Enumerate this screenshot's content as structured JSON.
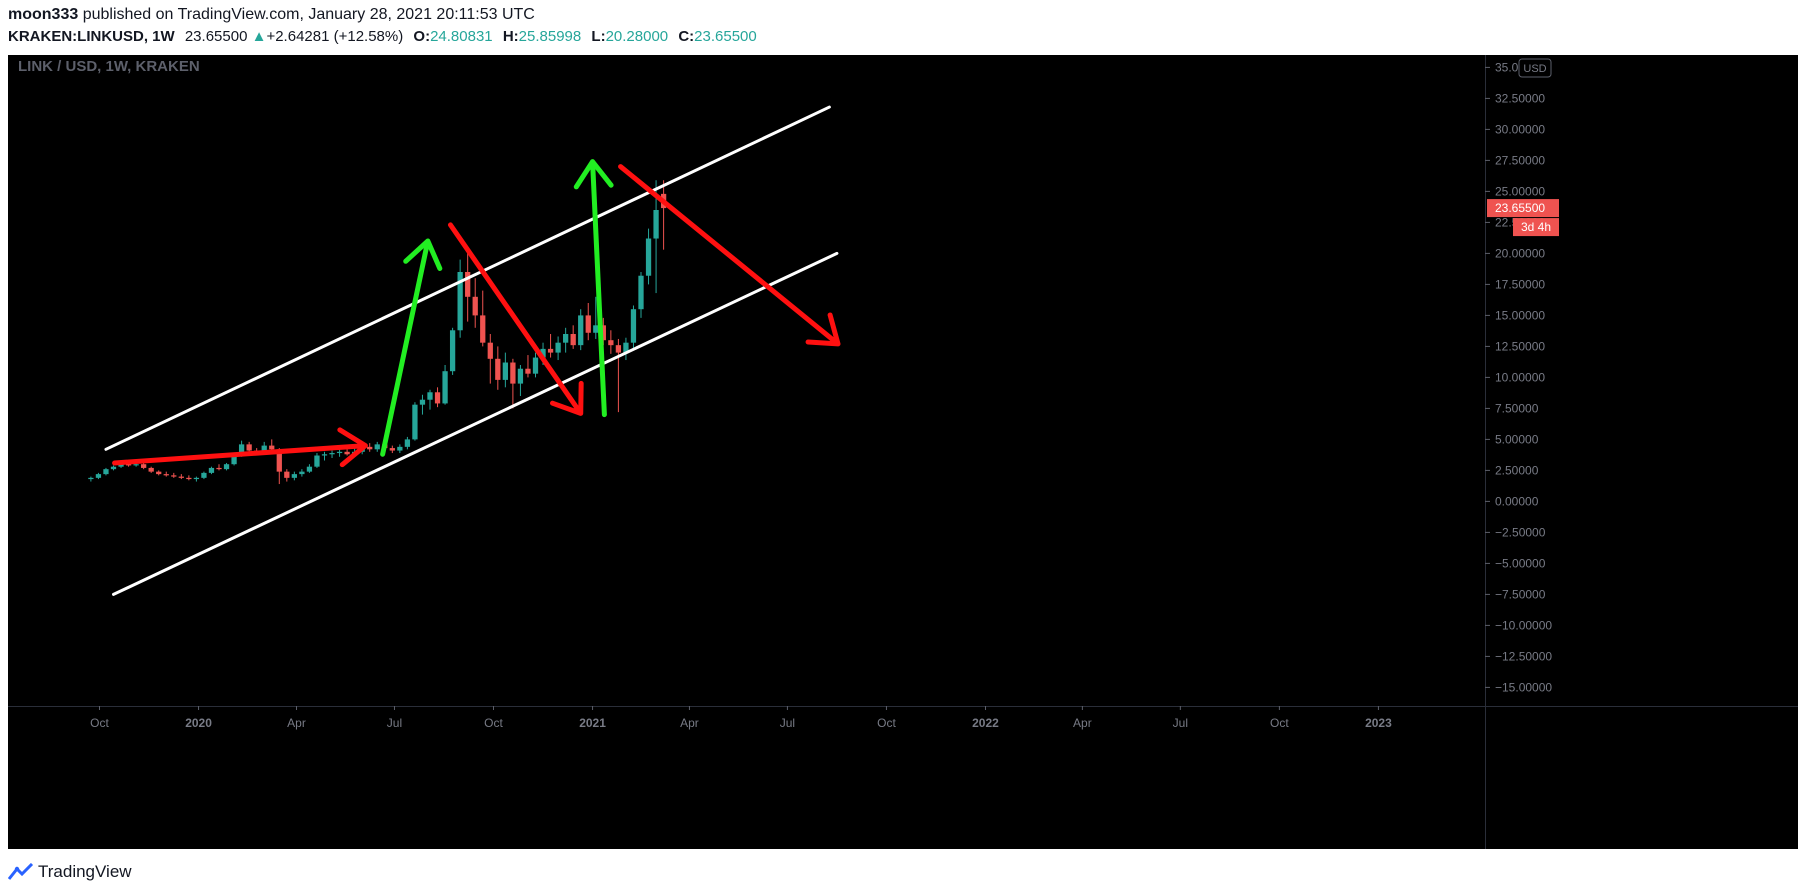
{
  "header": {
    "author": "moon333",
    "published_text": "published on TradingView.com, January 28, 2021 20:11:53 UTC",
    "symbol": "KRAKEN:LINKUSD, 1W",
    "last": "23.65500",
    "change": "+2.64281 (+12.58%)",
    "o_label": "O:",
    "o_value": "24.80831",
    "h_label": "H:",
    "h_value": "25.85998",
    "l_label": "L:",
    "l_value": "20.28000",
    "c_label": "C:",
    "c_value": "23.65500"
  },
  "footer": {
    "brand": "TradingView"
  },
  "colors": {
    "background": "#000000",
    "up_candle": "#26a69a",
    "down_candle": "#ef5350",
    "channel_line": "#ffffff",
    "arrow_red": "#ff1010",
    "arrow_green": "#22ee22",
    "price_tag": "#ef5350"
  },
  "chart_data": {
    "type": "candlestick",
    "title": "LINK / USD, 1W, KRAKEN",
    "currency_label": "USD",
    "last_price_label": "23.65500",
    "countdown_label": "3d 4h",
    "ylim": [
      -16.5,
      36
    ],
    "y_ticks": [
      {
        "v": 35,
        "label": "35.00000"
      },
      {
        "v": 32.5,
        "label": "32.50000"
      },
      {
        "v": 30,
        "label": "30.00000"
      },
      {
        "v": 27.5,
        "label": "27.50000"
      },
      {
        "v": 25,
        "label": "25.00000"
      },
      {
        "v": 22.5,
        "label": "22.50000"
      },
      {
        "v": 20,
        "label": "20.00000"
      },
      {
        "v": 17.5,
        "label": "17.50000"
      },
      {
        "v": 15,
        "label": "15.00000"
      },
      {
        "v": 12.5,
        "label": "12.50000"
      },
      {
        "v": 10,
        "label": "10.00000"
      },
      {
        "v": 7.5,
        "label": "7.50000"
      },
      {
        "v": 5,
        "label": "5.00000"
      },
      {
        "v": 2.5,
        "label": "2.50000"
      },
      {
        "v": 0,
        "label": "0.00000"
      },
      {
        "v": -2.5,
        "label": "−2.50000"
      },
      {
        "v": -5,
        "label": "−5.00000"
      },
      {
        "v": -7.5,
        "label": "−7.50000"
      },
      {
        "v": -10,
        "label": "−10.00000"
      },
      {
        "v": -12.5,
        "label": "−12.50000"
      },
      {
        "v": -15,
        "label": "−15.00000"
      }
    ],
    "x_range": [
      "2019-07-08",
      "2023-04-10"
    ],
    "x_ticks": [
      {
        "date": "2019-10-01",
        "label": "Oct",
        "bold": false
      },
      {
        "date": "2020-01-01",
        "label": "2020",
        "bold": true
      },
      {
        "date": "2020-04-01",
        "label": "Apr",
        "bold": false
      },
      {
        "date": "2020-07-01",
        "label": "Jul",
        "bold": false
      },
      {
        "date": "2020-10-01",
        "label": "Oct",
        "bold": false
      },
      {
        "date": "2021-01-01",
        "label": "2021",
        "bold": true
      },
      {
        "date": "2021-04-01",
        "label": "Apr",
        "bold": false
      },
      {
        "date": "2021-07-01",
        "label": "Jul",
        "bold": false
      },
      {
        "date": "2021-10-01",
        "label": "Oct",
        "bold": false
      },
      {
        "date": "2022-01-01",
        "label": "2022",
        "bold": true
      },
      {
        "date": "2022-04-01",
        "label": "Apr",
        "bold": false
      },
      {
        "date": "2022-07-01",
        "label": "Jul",
        "bold": false
      },
      {
        "date": "2022-10-01",
        "label": "Oct",
        "bold": false
      },
      {
        "date": "2023-01-01",
        "label": "2023",
        "bold": true
      }
    ],
    "first_candle_date": "2019-09-23",
    "candles": [
      [
        1.8,
        2.0,
        1.6,
        1.9
      ],
      [
        1.9,
        2.3,
        1.8,
        2.2
      ],
      [
        2.2,
        2.7,
        2.1,
        2.6
      ],
      [
        2.6,
        2.9,
        2.5,
        2.8
      ],
      [
        2.8,
        3.2,
        2.7,
        3.0
      ],
      [
        3.0,
        3.3,
        2.8,
        2.9
      ],
      [
        2.9,
        3.2,
        2.8,
        3.0
      ],
      [
        3.0,
        3.1,
        2.6,
        2.7
      ],
      [
        2.7,
        2.8,
        2.3,
        2.4
      ],
      [
        2.4,
        2.5,
        2.1,
        2.2
      ],
      [
        2.2,
        2.4,
        2.0,
        2.1
      ],
      [
        2.1,
        2.3,
        1.9,
        2.0
      ],
      [
        2.0,
        2.2,
        1.8,
        1.9
      ],
      [
        1.9,
        2.1,
        1.7,
        1.8
      ],
      [
        1.8,
        2.0,
        1.6,
        1.9
      ],
      [
        1.9,
        2.4,
        1.8,
        2.3
      ],
      [
        2.3,
        2.8,
        2.2,
        2.7
      ],
      [
        2.7,
        3.0,
        2.5,
        2.6
      ],
      [
        2.6,
        3.1,
        2.5,
        3.0
      ],
      [
        3.0,
        3.8,
        2.9,
        3.7
      ],
      [
        3.7,
        4.9,
        3.6,
        4.6
      ],
      [
        4.6,
        4.8,
        3.9,
        4.1
      ],
      [
        4.1,
        4.3,
        3.8,
        4.0
      ],
      [
        4.0,
        4.8,
        3.9,
        4.5
      ],
      [
        4.5,
        5.0,
        4.1,
        4.2
      ],
      [
        4.2,
        4.3,
        1.4,
        2.4
      ],
      [
        2.4,
        2.6,
        1.6,
        1.9
      ],
      [
        1.9,
        2.4,
        1.7,
        2.2
      ],
      [
        2.2,
        2.6,
        2.0,
        2.4
      ],
      [
        2.4,
        3.0,
        2.3,
        2.8
      ],
      [
        2.8,
        3.9,
        2.7,
        3.7
      ],
      [
        3.7,
        4.0,
        3.3,
        3.8
      ],
      [
        3.8,
        4.1,
        3.5,
        3.9
      ],
      [
        3.9,
        4.2,
        3.6,
        4.0
      ],
      [
        4.0,
        4.2,
        3.7,
        3.8
      ],
      [
        3.8,
        4.3,
        3.6,
        4.0
      ],
      [
        4.0,
        4.6,
        3.8,
        4.4
      ],
      [
        4.4,
        4.7,
        4.0,
        4.2
      ],
      [
        4.2,
        4.8,
        4.0,
        4.6
      ],
      [
        4.6,
        4.9,
        4.1,
        4.3
      ],
      [
        4.3,
        4.5,
        3.9,
        4.1
      ],
      [
        4.1,
        4.6,
        3.9,
        4.4
      ],
      [
        4.4,
        5.2,
        4.2,
        5.0
      ],
      [
        5.0,
        8.0,
        4.9,
        7.8
      ],
      [
        7.8,
        8.6,
        7.0,
        8.2
      ],
      [
        8.2,
        9.0,
        7.4,
        8.8
      ],
      [
        8.8,
        9.2,
        7.6,
        7.9
      ],
      [
        7.9,
        11.0,
        7.8,
        10.5
      ],
      [
        10.5,
        14.0,
        10.2,
        13.8
      ],
      [
        13.8,
        19.5,
        13.2,
        18.5
      ],
      [
        18.5,
        20.1,
        14.5,
        16.5
      ],
      [
        16.5,
        18.0,
        14.0,
        15.0
      ],
      [
        15.0,
        17.0,
        12.5,
        12.8
      ],
      [
        12.8,
        13.5,
        9.5,
        11.5
      ],
      [
        11.5,
        12.5,
        9.0,
        9.8
      ],
      [
        9.8,
        12.0,
        9.2,
        11.2
      ],
      [
        11.2,
        11.5,
        7.5,
        9.5
      ],
      [
        9.5,
        11.0,
        8.5,
        10.7
      ],
      [
        10.7,
        11.8,
        10.0,
        10.3
      ],
      [
        10.3,
        12.0,
        10.0,
        11.6
      ],
      [
        11.6,
        12.8,
        11.0,
        12.3
      ],
      [
        12.3,
        13.5,
        11.6,
        12.0
      ],
      [
        12.0,
        13.3,
        11.4,
        12.8
      ],
      [
        12.8,
        14.0,
        12.0,
        13.5
      ],
      [
        13.5,
        14.2,
        12.3,
        12.6
      ],
      [
        12.6,
        15.5,
        12.2,
        15.0
      ],
      [
        15.0,
        16.0,
        13.0,
        13.6
      ],
      [
        13.6,
        16.5,
        13.1,
        14.2
      ],
      [
        14.2,
        14.8,
        12.6,
        13.0
      ],
      [
        13.0,
        13.8,
        11.9,
        12.6
      ],
      [
        12.6,
        13.1,
        7.2,
        12.0
      ],
      [
        12.0,
        13.2,
        11.4,
        12.8
      ],
      [
        12.8,
        15.8,
        12.2,
        15.5
      ],
      [
        15.5,
        18.5,
        14.8,
        18.2
      ],
      [
        18.2,
        22.0,
        17.5,
        21.2
      ],
      [
        21.2,
        25.9,
        16.8,
        23.5
      ],
      [
        24.8,
        25.9,
        20.3,
        23.655
      ]
    ],
    "channel_upper": {
      "from": [
        "2019-10-07",
        4.2
      ],
      "to": [
        "2021-08-09",
        31.8
      ]
    },
    "channel_lower": {
      "from": [
        "2019-10-14",
        -7.5
      ],
      "to": [
        "2021-08-16",
        20.0
      ]
    },
    "annotations": [
      {
        "kind": "arrow",
        "color": "red",
        "from": [
          "2019-10-15",
          3.1
        ],
        "to": [
          "2020-06-04",
          4.5
        ]
      },
      {
        "kind": "arrow",
        "color": "green",
        "from": [
          "2020-06-20",
          3.8
        ],
        "to": [
          "2020-08-01",
          21.0
        ]
      },
      {
        "kind": "arrow",
        "color": "red",
        "from": [
          "2020-08-22",
          22.3
        ],
        "to": [
          "2020-12-21",
          7.1
        ]
      },
      {
        "kind": "arrow",
        "color": "green",
        "from": [
          "2021-01-12",
          7.0
        ],
        "to": [
          "2021-01-01",
          27.4
        ]
      },
      {
        "kind": "arrow",
        "color": "red",
        "from": [
          "2021-01-27",
          27.0
        ],
        "to": [
          "2021-08-17",
          12.7
        ]
      }
    ]
  }
}
